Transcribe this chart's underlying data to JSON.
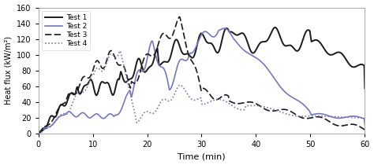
{
  "title": "",
  "xlabel": "Time (min)",
  "ylabel": "Heat flux (kW/m²)",
  "xlim": [
    0,
    60
  ],
  "ylim": [
    0,
    160
  ],
  "xticks": [
    0,
    10,
    20,
    30,
    40,
    50,
    60
  ],
  "yticks": [
    0,
    20,
    40,
    60,
    80,
    100,
    120,
    140,
    160
  ],
  "legend_labels": [
    "Test 1",
    "Test 2",
    "Test 3",
    "Test 4"
  ],
  "test1_color": "#1a1a1a",
  "test2_color": "#7777bb",
  "test3_color": "#1a1a1a",
  "test4_color": "#7777bb",
  "test1_lw": 1.4,
  "test2_lw": 1.2,
  "test3_lw": 1.2,
  "test4_lw": 1.2,
  "figsize": [
    4.74,
    2.1
  ],
  "dpi": 100,
  "background_color": "#ffffff"
}
